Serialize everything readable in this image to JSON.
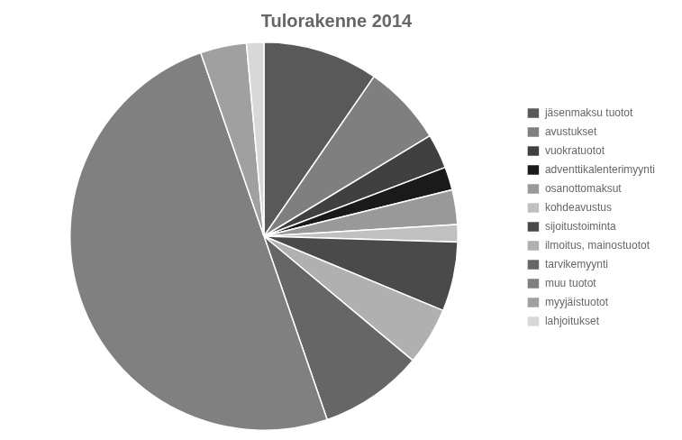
{
  "chart_data": {
    "type": "pie",
    "title": "Tulorakenne 2014",
    "categories": [
      "jäsenmaksu tuotot",
      "avustukset",
      "vuokratuotot",
      "adventtikalenterimyynti",
      "osanottomaksut",
      "kohdeavustus",
      "sijoitustoiminta",
      "ilmoitus, mainostuotot",
      "tarvikemyynti",
      "muu tuotot",
      "myyjäistuotot",
      "lahjoitukset"
    ],
    "values": [
      10,
      7,
      3,
      2,
      3,
      1.5,
      6,
      5,
      9,
      52,
      4,
      1.5
    ],
    "colors": [
      "#595959",
      "#7f7f7f",
      "#404040",
      "#1a1a1a",
      "#999999",
      "#c0c0c0",
      "#4a4a4a",
      "#b0b0b0",
      "#666666",
      "#808080",
      "#a0a0a0",
      "#d8d8d8"
    ],
    "legend": "right"
  }
}
